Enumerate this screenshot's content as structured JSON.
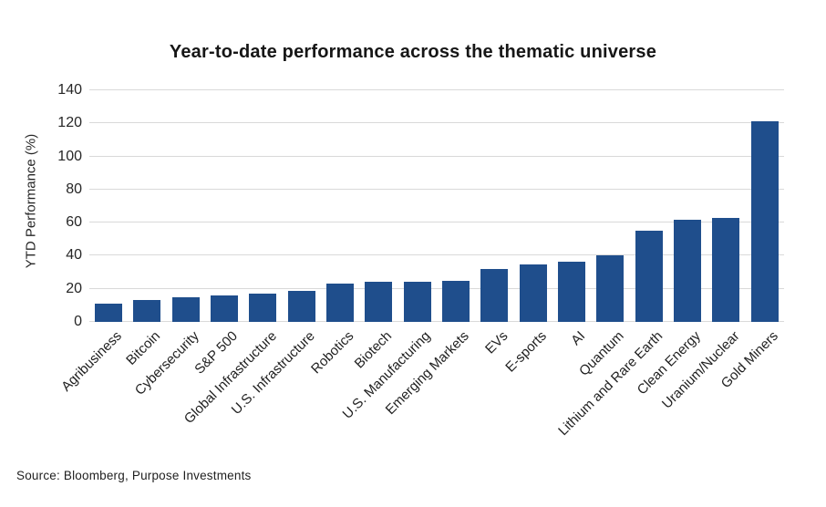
{
  "title": "Year-to-date performance across the thematic universe",
  "source_note": "Source: Bloomberg, Purpose Investments",
  "colors": {
    "bar": "#1F4E8C",
    "gridline": "#d9d9d9",
    "text": "#1f1f1f",
    "background": "#ffffff"
  },
  "chart_data": {
    "type": "bar",
    "title": "Year-to-date performance across the thematic universe",
    "xlabel": "",
    "ylabel": "YTD Performance (%)",
    "ylim": [
      0,
      140
    ],
    "yticks": [
      0,
      20,
      40,
      60,
      80,
      100,
      120,
      140
    ],
    "grid": true,
    "legend": false,
    "bar_color": "#1F4E8C",
    "x_tick_rotation": 45,
    "categories": [
      "Agribusiness",
      "Bitcoin",
      "Cybersecurity",
      "S&P 500",
      "Global Infrastructure",
      "U.S. Infrastructure",
      "Robotics",
      "Biotech",
      "U.S. Manufacturing",
      "Emerging Markets",
      "EVs",
      "E-sports",
      "AI",
      "Quantum",
      "Lithium and Rare Earth",
      "Clean Energy",
      "Uranium/Nuclear",
      "Gold Miners"
    ],
    "values": [
      11,
      13,
      15,
      16,
      17,
      19,
      23,
      24,
      24.5,
      25,
      32,
      35,
      36.5,
      40.5,
      55,
      62,
      63,
      121
    ],
    "source": "Source: Bloomberg, Purpose Investments"
  }
}
